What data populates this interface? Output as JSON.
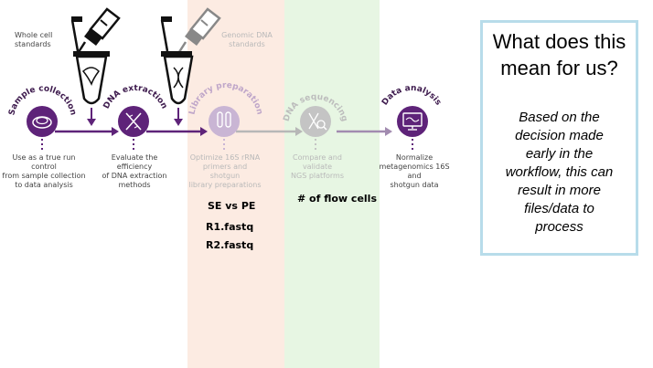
{
  "bands": {
    "library_color": "#fcebe2",
    "sequencing_color": "#e7f6e3"
  },
  "colors": {
    "purple": "#5e2379",
    "purple_faded": "#c9b5d4",
    "gray_faded": "#bfbfbf",
    "callout_border": "#b8dcea"
  },
  "pipettes": {
    "whole_cell_label": "Whole cell\nstandards",
    "genomic_dna_label": "Genomic DNA\nstandards"
  },
  "steps": [
    {
      "title": "Sample collection",
      "icon": "petri-dish-icon",
      "description": "Use as a true run control\nfrom sample collection\nto data analysis"
    },
    {
      "title": "DNA extraction",
      "icon": "dna-helix-icon",
      "description": "Evaluate the efficiency\nof DNA extraction\nmethods"
    },
    {
      "title": "Library preparation",
      "icon": "test-tubes-icon",
      "description": "Optimize 16S rRNA\nprimers and shotgun\nlibrary preparations"
    },
    {
      "title": "DNA sequencing",
      "icon": "dna-magnifier-icon",
      "description": "Compare and validate\nNGS platforms"
    },
    {
      "title": "Data analysis",
      "icon": "monitor-dna-icon",
      "description": "Normalize\nmetagenomics 16S and\nshotgun data"
    }
  ],
  "notes": {
    "se_vs_pe": "SE vs PE",
    "r1": "R1.fastq",
    "r2": "R2.fastq",
    "flow_cells": "# of flow cells"
  },
  "callout": {
    "title": "What does this\nmean for us?",
    "body": "Based on the\ndecision made\nearly in the\nworkflow, this can\nresult in more\nfiles/data to\nprocess"
  }
}
